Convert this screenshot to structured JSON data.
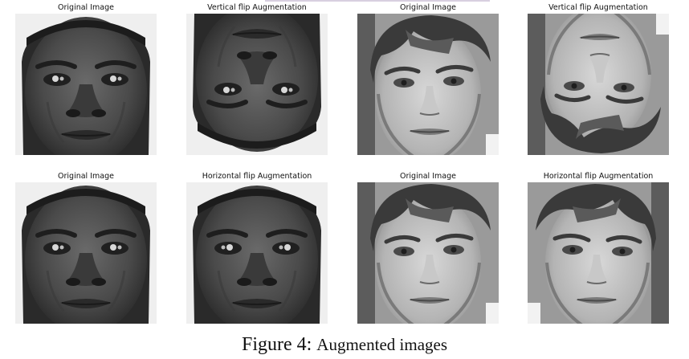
{
  "panels": [
    {
      "title": "Original Image",
      "face": "dark",
      "flip": "none"
    },
    {
      "title": "Vertical flip Augmentation",
      "face": "dark",
      "flip": "vertical"
    },
    {
      "title": "Original Image",
      "face": "light",
      "flip": "none"
    },
    {
      "title": "Vertical flip Augmentation",
      "face": "light",
      "flip": "vertical"
    },
    {
      "title": "Original Image",
      "face": "dark",
      "flip": "none"
    },
    {
      "title": "Horizontal flip Augmentation",
      "face": "dark",
      "flip": "horizontal"
    },
    {
      "title": "Original Image",
      "face": "light",
      "flip": "none"
    },
    {
      "title": "Horizontal flip Augmentation",
      "face": "light",
      "flip": "horizontal"
    }
  ],
  "caption": {
    "label": "Figure 4:",
    "text": "Augmented images"
  }
}
